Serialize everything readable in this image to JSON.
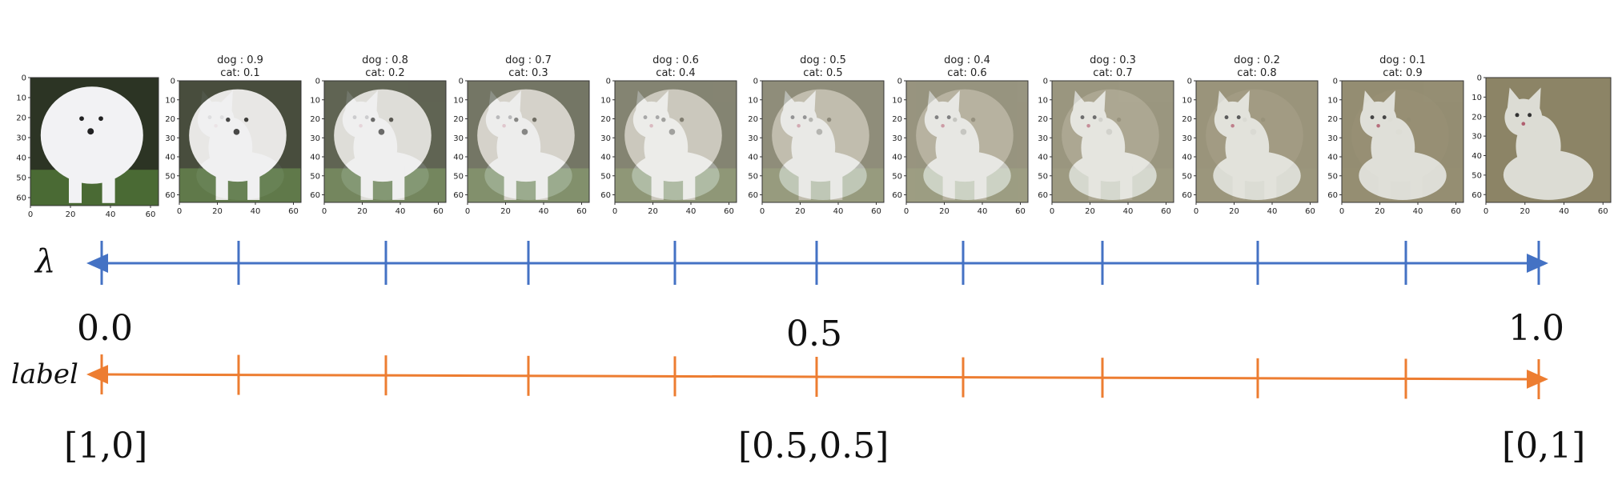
{
  "frames": [
    {
      "lambda": 0.0,
      "caption": [
        "",
        ""
      ]
    },
    {
      "lambda": 0.1,
      "caption": [
        "dog : 0.9",
        "cat: 0.1"
      ]
    },
    {
      "lambda": 0.2,
      "caption": [
        "dog : 0.8",
        "cat: 0.2"
      ]
    },
    {
      "lambda": 0.3,
      "caption": [
        "dog : 0.7",
        "cat: 0.3"
      ]
    },
    {
      "lambda": 0.4,
      "caption": [
        "dog : 0.6",
        "cat: 0.4"
      ]
    },
    {
      "lambda": 0.5,
      "caption": [
        "dog : 0.5",
        "cat: 0.5"
      ]
    },
    {
      "lambda": 0.6,
      "caption": [
        "dog : 0.4",
        "cat: 0.6"
      ]
    },
    {
      "lambda": 0.7,
      "caption": [
        "dog : 0.3",
        "cat: 0.7"
      ]
    },
    {
      "lambda": 0.8,
      "caption": [
        "dog : 0.2",
        "cat: 0.8"
      ]
    },
    {
      "lambda": 0.9,
      "caption": [
        "dog : 0.1",
        "cat: 0.9"
      ]
    },
    {
      "lambda": 1.0,
      "caption": [
        "",
        ""
      ]
    }
  ],
  "axis_ticks": [
    "0",
    "20",
    "40",
    "60"
  ],
  "y_axis_ticks": [
    "0",
    "10",
    "20",
    "30",
    "40",
    "50",
    "60"
  ],
  "lambda_axis": {
    "symbol": "λ",
    "labels": [
      "0.0",
      "0.5",
      "1.0"
    ],
    "color": "#4472C4"
  },
  "label_axis": {
    "name": "label",
    "labels": [
      "[1,0]",
      "[0.5,0.5]",
      "[0,1]"
    ],
    "color": "#ED7D31"
  },
  "colors": {
    "dog_fur": "#f2f2f4",
    "cat_fur": "#dcdcd4",
    "grass": "#4a6a34",
    "dog_bg": "#2c3424",
    "cat_bg": "#8c8466"
  }
}
